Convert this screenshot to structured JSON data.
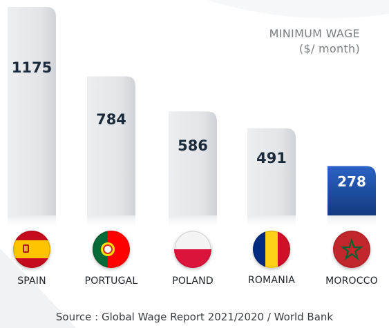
{
  "chart_data": {
    "type": "bar",
    "title": "MINIMUM WAGE",
    "subtitle": "($/ month)",
    "categories": [
      "SPAIN",
      "PORTUGAL",
      "POLAND",
      "ROMANIA",
      "MOROCCO"
    ],
    "values": [
      1175,
      784,
      586,
      491,
      278
    ],
    "value_labels": [
      "1175",
      "784",
      "586",
      "491",
      "278"
    ],
    "highlight_category": "MOROCCO",
    "bar_color": "#e4e6e8",
    "highlight_color": "#1f4ea6",
    "grid": false,
    "legend": "none"
  },
  "flags": [
    "spain-flag-icon",
    "portugal-flag-icon",
    "poland-flag-icon",
    "romania-flag-icon",
    "morocco-flag-icon"
  ],
  "source": "Source : Global Wage Report  2021/2020 / World Bank"
}
